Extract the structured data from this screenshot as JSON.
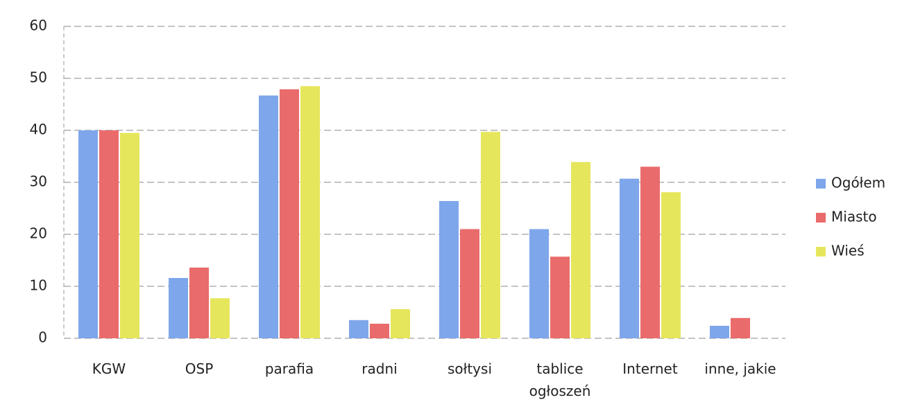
{
  "chart_data": {
    "type": "bar",
    "categories": [
      "KGW",
      "OSP",
      "parafia",
      "radni",
      "sołtysi",
      "tablice\nogłoszeń",
      "Internet",
      "inne, jakie"
    ],
    "series": [
      {
        "name": "Ogółem",
        "color": "#7ea6ea",
        "values": [
          40,
          11.6,
          46.7,
          3.5,
          26.4,
          21,
          30.7,
          2.4
        ]
      },
      {
        "name": "Miasto",
        "color": "#ea6b6b",
        "values": [
          40,
          13.6,
          47.9,
          2.8,
          21,
          15.7,
          33,
          3.9
        ]
      },
      {
        "name": "Wieś",
        "color": "#e6e65c",
        "values": [
          39.5,
          7.7,
          48.5,
          5.6,
          39.7,
          33.9,
          28.1,
          null
        ]
      }
    ],
    "ylim": [
      0,
      60
    ],
    "yticks": [
      0,
      10,
      20,
      30,
      40,
      50,
      60
    ],
    "grid": true,
    "legend": "right"
  }
}
